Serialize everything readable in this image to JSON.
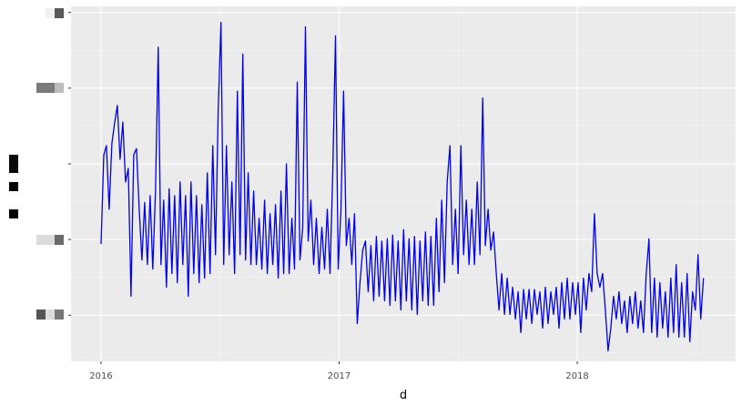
{
  "chart_data": {
    "type": "line",
    "title": "",
    "xlabel": "d",
    "ylabel": "",
    "x_tick_labels": [
      "2016",
      "2017",
      "2018"
    ],
    "x_ticks": [
      2016,
      2017,
      2018
    ],
    "xlim": [
      2015.874,
      2018.665
    ],
    "x_start": 2016.0,
    "x_end": 2018.53,
    "y_ticks": [
      0,
      1,
      2,
      3,
      4
    ],
    "y_tick_labels_obscured": true,
    "ylim": [
      -0.61,
      4.08
    ],
    "grid": true,
    "line_color": "#0000ee",
    "panel_color": "#ebebeb",
    "series": [
      {
        "values": [
          0.94,
          2.12,
          2.24,
          1.4,
          2.27,
          2.54,
          2.77,
          2.06,
          2.55,
          1.76,
          1.94,
          0.25,
          2.12,
          2.2,
          1.4,
          0.73,
          1.49,
          0.67,
          1.58,
          0.61,
          1.64,
          3.54,
          0.67,
          1.52,
          0.37,
          1.67,
          0.55,
          1.58,
          0.43,
          1.76,
          0.67,
          1.58,
          0.25,
          1.76,
          0.55,
          1.58,
          0.43,
          1.46,
          0.49,
          1.88,
          0.55,
          2.24,
          0.8,
          2.72,
          3.87,
          0.67,
          2.24,
          0.8,
          1.76,
          0.55,
          2.96,
          0.8,
          3.45,
          0.73,
          1.88,
          0.67,
          1.64,
          0.67,
          1.28,
          0.61,
          1.52,
          0.55,
          1.34,
          0.67,
          1.46,
          0.49,
          1.64,
          0.55,
          2.0,
          0.55,
          1.28,
          0.61,
          3.08,
          0.73,
          1.16,
          3.81,
          0.98,
          1.52,
          0.67,
          1.28,
          0.55,
          1.16,
          0.61,
          1.4,
          0.55,
          1.88,
          3.69,
          0.61,
          1.4,
          2.96,
          0.92,
          1.28,
          0.67,
          1.34,
          -0.11,
          0.43,
          0.86,
          0.98,
          0.31,
          0.92,
          0.19,
          1.04,
          0.25,
          0.98,
          0.19,
          1.01,
          0.13,
          1.06,
          0.19,
          0.98,
          0.07,
          1.13,
          0.19,
          1.01,
          0.07,
          1.04,
          0.01,
          0.98,
          0.19,
          1.1,
          0.13,
          1.04,
          0.13,
          1.28,
          0.31,
          1.52,
          0.43,
          1.76,
          2.24,
          0.67,
          1.4,
          0.55,
          2.24,
          0.8,
          1.52,
          0.67,
          1.4,
          0.67,
          1.76,
          0.8,
          2.87,
          0.92,
          1.4,
          0.86,
          1.1,
          0.55,
          0.07,
          0.55,
          0.01,
          0.49,
          0.01,
          0.37,
          -0.05,
          0.31,
          -0.23,
          0.34,
          -0.05,
          0.34,
          -0.11,
          0.34,
          0.01,
          0.31,
          -0.17,
          0.37,
          -0.11,
          0.31,
          0.01,
          0.37,
          -0.17,
          0.43,
          -0.05,
          0.49,
          -0.05,
          0.43,
          0.01,
          0.43,
          -0.23,
          0.49,
          0.07,
          0.55,
          0.31,
          1.34,
          0.55,
          0.37,
          0.55,
          0.07,
          -0.47,
          -0.17,
          0.25,
          -0.05,
          0.31,
          -0.11,
          0.19,
          -0.23,
          0.25,
          -0.11,
          0.31,
          -0.17,
          0.19,
          -0.23,
          0.55,
          1.01,
          -0.23,
          0.49,
          -0.29,
          0.43,
          -0.17,
          0.31,
          -0.29,
          0.49,
          -0.23,
          0.67,
          -0.29,
          0.43,
          -0.29,
          0.55,
          -0.35,
          0.31,
          0.07,
          0.8,
          -0.05,
          0.49
        ]
      }
    ]
  }
}
